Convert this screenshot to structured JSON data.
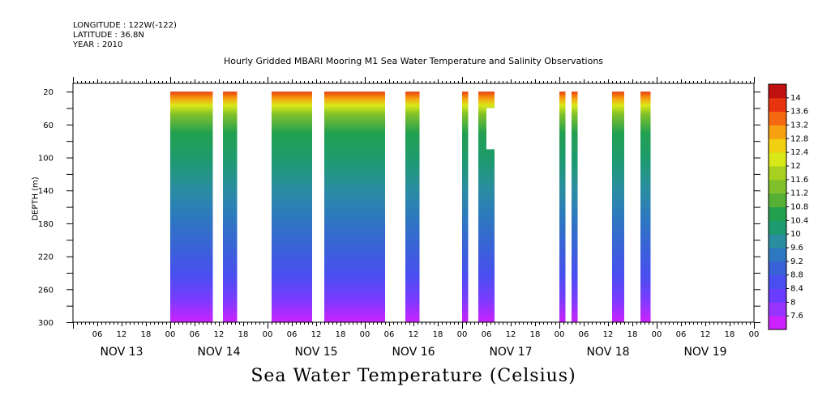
{
  "header": {
    "longitude": "LONGITUDE : 122W(-122)",
    "latitude": "LATITUDE : 36.8N",
    "year": "YEAR : 2010"
  },
  "chart_data": {
    "type": "heatmap",
    "title": "Hourly Gridded MBARI Mooring M1 Sea Water Temperature and Salinity Observations",
    "xlabel": "Sea Water Temperature (Celsius)",
    "ylabel": "DEPTH (m)",
    "x_unit": "hours since NOV 13 00:00",
    "xlim": [
      0,
      168
    ],
    "ylim": [
      300,
      10
    ],
    "y_ticks": [
      20,
      60,
      100,
      140,
      180,
      220,
      260,
      300
    ],
    "x_tick_labels": [
      "06",
      "12",
      "18",
      "00",
      "06",
      "12",
      "18",
      "00",
      "06",
      "12",
      "18",
      "00",
      "06",
      "12",
      "18",
      "00",
      "06",
      "12",
      "18",
      "00",
      "06",
      "12",
      "18",
      "00",
      "06",
      "12",
      "18",
      "00"
    ],
    "day_labels": [
      "NOV 13",
      "NOV 14",
      "NOV 15",
      "NOV 16",
      "NOV 17",
      "NOV 18",
      "NOV 19"
    ],
    "colorbar": {
      "levels": [
        7.6,
        8,
        8.4,
        8.8,
        9.2,
        9.6,
        10,
        10.4,
        10.8,
        11.2,
        11.6,
        12,
        12.4,
        12.8,
        13.2,
        13.6,
        14
      ],
      "labels": [
        "14",
        "13.6",
        "13.2",
        "12.8",
        "12.4",
        "12",
        "11.6",
        "11.2",
        "10.8",
        "10.4",
        "10",
        "9.6",
        "9.2",
        "8.8",
        "8.4",
        "8",
        "7.6"
      ],
      "colors": [
        "#cc22ff",
        "#9933ff",
        "#6a3cff",
        "#4a4ef0",
        "#3a62d8",
        "#2d78c0",
        "#2a8ea0",
        "#1e9a70",
        "#22a050",
        "#55b035",
        "#7fc02a",
        "#a8d020",
        "#d8e818",
        "#f0d010",
        "#f7a010",
        "#f56a10",
        "#e83410",
        "#c01010"
      ]
    },
    "segments": [
      {
        "start": 24,
        "end": 34.5
      },
      {
        "start": 37,
        "end": 40.5
      },
      {
        "start": 49,
        "end": 59
      },
      {
        "start": 62,
        "end": 77
      },
      {
        "start": 82,
        "end": 85.5
      },
      {
        "start": 96,
        "end": 97.5
      },
      {
        "start": 100,
        "end": 104,
        "gap_depth": [
          40,
          90
        ],
        "gap_hours": [
          102,
          104
        ]
      },
      {
        "start": 120,
        "end": 121.5
      },
      {
        "start": 123,
        "end": 124.5
      },
      {
        "start": 133,
        "end": 136
      },
      {
        "start": 140,
        "end": 142.5
      }
    ]
  }
}
